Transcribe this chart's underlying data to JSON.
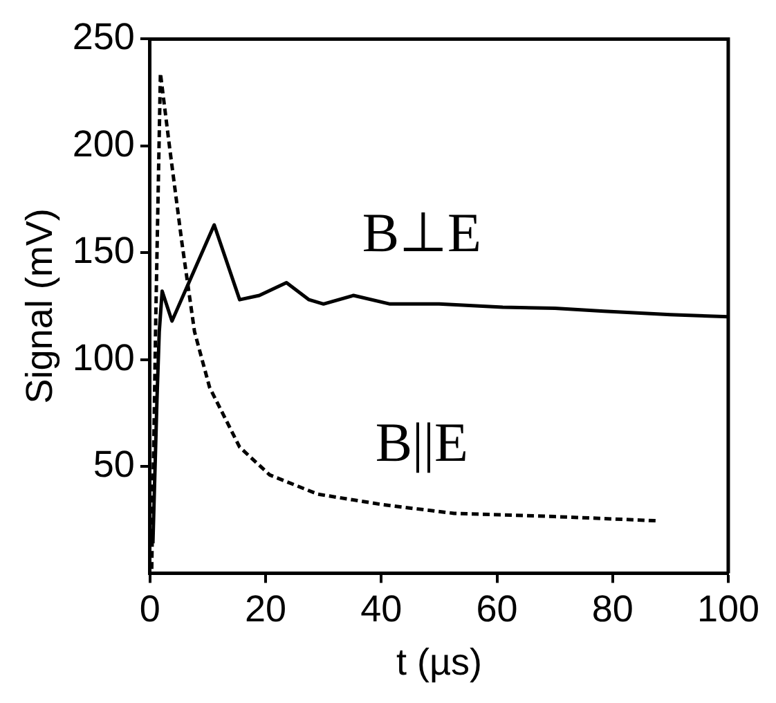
{
  "chart_data": {
    "type": "line",
    "xlabel": "t (µs)",
    "ylabel": "Signal (mV)",
    "xlim": [
      0,
      100
    ],
    "ylim": [
      0,
      250
    ],
    "xticks": [
      0,
      20,
      40,
      60,
      80,
      100
    ],
    "yticks": [
      50,
      100,
      150,
      200,
      250
    ],
    "grid": false,
    "legend": false,
    "marker": "none",
    "series": [
      {
        "name": "B⊥E",
        "color": "#000000",
        "line_style": "solid",
        "x": [
          0.5,
          1.2,
          1.6,
          2.1,
          3.8,
          6.4,
          11.1,
          15.5,
          18.9,
          23.6,
          27.5,
          30,
          35.2,
          41.5,
          50,
          61,
          70,
          78.5,
          90,
          100
        ],
        "values": [
          14,
          81,
          113,
          132,
          118,
          134,
          163,
          128,
          130,
          136,
          128,
          126,
          130,
          126,
          126,
          124.5,
          124,
          122.6,
          121,
          120
        ]
      },
      {
        "name": "B||E",
        "color": "#000000",
        "line_style": "dashed",
        "x": [
          0.3,
          1,
          1.8,
          3.4,
          5.5,
          7.7,
          10.3,
          15.5,
          20.7,
          29,
          40.4,
          52.6,
          70,
          88
        ],
        "values": [
          2,
          120,
          234,
          199,
          155,
          113,
          87,
          59,
          46,
          37,
          32,
          28,
          26.5,
          24.5
        ]
      }
    ]
  }
}
